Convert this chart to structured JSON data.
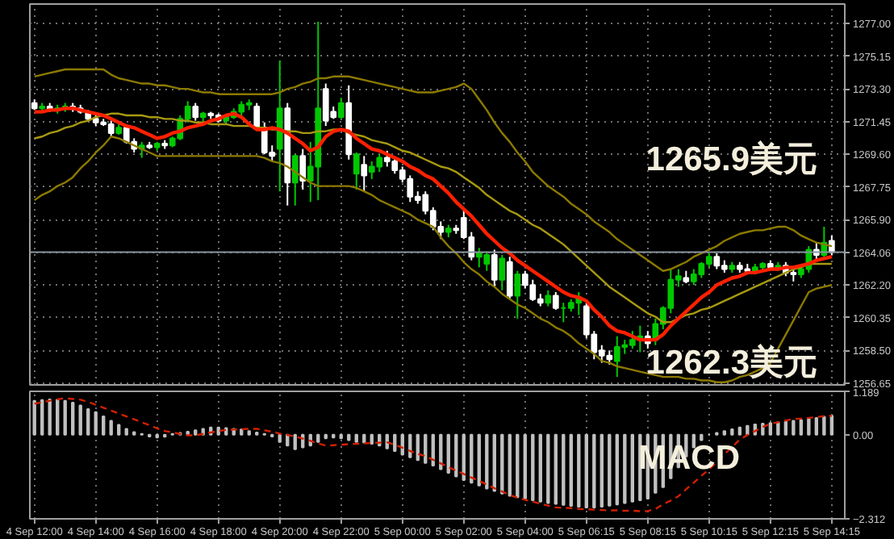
{
  "chart_data": [
    {
      "type": "candlestick",
      "ylim": [
        1256.55,
        1278.1
      ],
      "categories": [
        null,
        null,
        null,
        null,
        null,
        null,
        null,
        null,
        null,
        null,
        null,
        null,
        null,
        null,
        null,
        null,
        null,
        null,
        null,
        null,
        null,
        null,
        null,
        null,
        null,
        null,
        null,
        null,
        null,
        null,
        null,
        null,
        null,
        null,
        null,
        null,
        null,
        null,
        null,
        null,
        null,
        null,
        null,
        null,
        null,
        null,
        null,
        null,
        null,
        null,
        null,
        null,
        null,
        null,
        null,
        null,
        null,
        null,
        null,
        null,
        null,
        null,
        null,
        null,
        null,
        null,
        null,
        null,
        null,
        null,
        null,
        null,
        null,
        null,
        null,
        null,
        null,
        null,
        null,
        null,
        null,
        null,
        null,
        null,
        null,
        null,
        null,
        null,
        null,
        null,
        null,
        null,
        null,
        null,
        null,
        null,
        null,
        null,
        null,
        null,
        null,
        null,
        null,
        null,
        null
      ],
      "yticks": [
        {
          "value": 1277.0,
          "label": "1277.00"
        },
        {
          "value": 1275.15,
          "label": "1275.15"
        },
        {
          "value": 1273.3,
          "label": "1273.30"
        },
        {
          "value": 1271.45,
          "label": "1271.45"
        },
        {
          "value": 1269.6,
          "label": "1269.60"
        },
        {
          "value": 1267.75,
          "label": "1267.75"
        },
        {
          "value": 1265.9,
          "label": "1265.90"
        },
        {
          "value": 1264.06,
          "label": "1264.06"
        },
        {
          "value": 1262.2,
          "label": "1262.20"
        },
        {
          "value": 1260.35,
          "label": "1260.35"
        },
        {
          "value": 1258.5,
          "label": "1258.50"
        },
        {
          "value": 1256.65,
          "label": "1256.65"
        }
      ],
      "tick_labels": "y",
      "grid": true,
      "colors": [
        "#ffffff",
        "#00c800",
        "#ffffff",
        "#00c800",
        "#00c800",
        "#ffffff",
        "#ffffff",
        "#ffffff",
        "#ffffff",
        "#ffffff",
        "#ffffff",
        "#00c800",
        "#ffffff",
        "#ffffff",
        "#00c800",
        "#ffffff",
        "#00c800",
        "#ffffff",
        "#00c800",
        "#00c800",
        "#00c800",
        "#ffffff",
        "#00c800",
        "#ffffff",
        "#ffffff",
        "#00c800",
        "#00c800",
        "#00c800",
        "#00c800",
        "#ffffff",
        "#ffffff",
        "#ffffff",
        "#00c800",
        "#ffffff",
        "#00c800",
        "#ffffff",
        "#00c800",
        "#00c800",
        "#ffffff",
        "#ffffff",
        "#00c800",
        "#ffffff",
        "#00c800",
        "#ffffff",
        "#00c800",
        "#00c800",
        "#ffffff",
        "#ffffff",
        "#ffffff",
        "#ffffff",
        "#ffffff",
        "#ffffff",
        "#ffffff",
        "#ffffff",
        "#00c800",
        "#ffffff",
        "#ffffff",
        "#ffffff",
        "#00c800",
        "#00c800",
        "#ffffff",
        "#00c800",
        "#ffffff",
        "#00c800",
        "#ffffff",
        "#ffffff",
        "#ffffff",
        "#00c800",
        "#ffffff",
        "#00c800",
        "#00c800",
        "#00c800",
        "#ffffff",
        "#ffffff",
        "#ffffff",
        "#ffffff",
        "#00c800",
        "#00c800",
        "#00c800",
        "#00c800",
        "#ffffff",
        "#00c800",
        "#00c800",
        "#00c800",
        "#00c800",
        "#ffffff",
        "#00c800",
        "#00c800",
        "#00c800",
        "#ffffff",
        "#ffffff",
        "#00c800",
        "#ffffff",
        "#ffffff",
        "#00c800",
        "#00c800",
        "#ffffff",
        "#00c800",
        "#ffffff",
        "#ffffff",
        "#00c800",
        "#00c800",
        "#ffffff",
        "#00c800",
        "#ffffff"
      ],
      "ohlc": [
        [
          1272.5,
          1272.7,
          1272.1,
          1272.2
        ],
        [
          1272.2,
          1272.5,
          1272.0,
          1272.3
        ],
        [
          1272.3,
          1272.5,
          1272.0,
          1272.1
        ],
        [
          1272.1,
          1272.4,
          1271.9,
          1272.2
        ],
        [
          1272.2,
          1272.5,
          1272.0,
          1272.3
        ],
        [
          1272.3,
          1272.5,
          1272.0,
          1272.2
        ],
        [
          1272.2,
          1272.4,
          1271.9,
          1272.0
        ],
        [
          1272.0,
          1272.1,
          1271.5,
          1271.6
        ],
        [
          1271.6,
          1271.8,
          1271.2,
          1271.4
        ],
        [
          1271.4,
          1271.6,
          1271.2,
          1271.3
        ],
        [
          1271.3,
          1271.5,
          1270.6,
          1270.8
        ],
        [
          1270.8,
          1271.3,
          1270.7,
          1271.1
        ],
        [
          1271.1,
          1271.3,
          1270.2,
          1270.3
        ],
        [
          1270.3,
          1270.5,
          1269.7,
          1269.9
        ],
        [
          1269.9,
          1270.3,
          1269.4,
          1270.1
        ],
        [
          1270.1,
          1270.3,
          1269.9,
          1270.0
        ],
        [
          1270.0,
          1270.3,
          1269.8,
          1270.2
        ],
        [
          1270.2,
          1270.4,
          1269.9,
          1270.1
        ],
        [
          1270.1,
          1270.6,
          1270.0,
          1270.5
        ],
        [
          1270.5,
          1271.8,
          1270.4,
          1271.6
        ],
        [
          1271.6,
          1272.6,
          1271.4,
          1272.3
        ],
        [
          1272.3,
          1272.5,
          1271.5,
          1271.7
        ],
        [
          1271.7,
          1272.0,
          1271.4,
          1271.9
        ],
        [
          1271.9,
          1272.0,
          1271.6,
          1271.8
        ],
        [
          1271.8,
          1271.9,
          1271.4,
          1271.5
        ],
        [
          1271.5,
          1271.8,
          1271.3,
          1271.7
        ],
        [
          1271.7,
          1272.2,
          1271.6,
          1272.0
        ],
        [
          1272.0,
          1272.6,
          1271.8,
          1272.4
        ],
        [
          1272.4,
          1272.7,
          1272.1,
          1272.5
        ],
        [
          1272.3,
          1272.5,
          1271.0,
          1271.1
        ],
        [
          1271.1,
          1271.4,
          1269.6,
          1269.7
        ],
        [
          1269.7,
          1270.1,
          1269.2,
          1269.5
        ],
        [
          1269.9,
          1274.9,
          1267.5,
          1272.2
        ],
        [
          1272.2,
          1272.5,
          1266.7,
          1268.0
        ],
        [
          1268.0,
          1269.6,
          1266.7,
          1269.5
        ],
        [
          1269.5,
          1269.9,
          1267.6,
          1268.1
        ],
        [
          1268.1,
          1270.3,
          1266.9,
          1268.9
        ],
        [
          1268.9,
          1277.1,
          1267.0,
          1272.2
        ],
        [
          1273.3,
          1273.6,
          1271.2,
          1271.5
        ],
        [
          1272.0,
          1272.3,
          1271.6,
          1271.7
        ],
        [
          1271.7,
          1272.8,
          1271.6,
          1272.5
        ],
        [
          1272.5,
          1273.5,
          1269.3,
          1269.6
        ],
        [
          1268.5,
          1269.7,
          1267.6,
          1269.6
        ],
        [
          1269.0,
          1269.5,
          1267.5,
          1268.4
        ],
        [
          1268.6,
          1269.2,
          1268.2,
          1268.9
        ],
        [
          1268.9,
          1269.6,
          1268.6,
          1269.4
        ],
        [
          1269.4,
          1269.8,
          1268.9,
          1269.2
        ],
        [
          1269.2,
          1269.4,
          1268.5,
          1268.7
        ],
        [
          1268.7,
          1268.9,
          1268.0,
          1268.2
        ],
        [
          1268.2,
          1268.4,
          1266.9,
          1267.2
        ],
        [
          1267.2,
          1267.5,
          1266.8,
          1267.0
        ],
        [
          1267.3,
          1267.5,
          1266.2,
          1266.4
        ],
        [
          1266.4,
          1266.6,
          1265.3,
          1265.5
        ],
        [
          1265.5,
          1265.8,
          1264.8,
          1265.2
        ],
        [
          1265.2,
          1265.6,
          1264.9,
          1265.4
        ],
        [
          1265.4,
          1265.6,
          1265.1,
          1265.3
        ],
        [
          1266.0,
          1266.5,
          1264.8,
          1264.9
        ],
        [
          1264.9,
          1265.2,
          1263.6,
          1263.8
        ],
        [
          1263.8,
          1264.3,
          1263.2,
          1264.0
        ],
        [
          1263.4,
          1264.1,
          1263.0,
          1263.9
        ],
        [
          1263.9,
          1264.2,
          1262.1,
          1262.5
        ],
        [
          1262.5,
          1263.9,
          1261.9,
          1263.7
        ],
        [
          1263.5,
          1263.8,
          1261.4,
          1261.6
        ],
        [
          1261.6,
          1263.0,
          1260.3,
          1262.8
        ],
        [
          1262.8,
          1263.0,
          1262.0,
          1262.2
        ],
        [
          1262.2,
          1262.5,
          1261.3,
          1261.4
        ],
        [
          1261.4,
          1261.7,
          1261.0,
          1261.2
        ],
        [
          1261.2,
          1261.9,
          1261.0,
          1261.6
        ],
        [
          1261.6,
          1261.8,
          1260.8,
          1260.9
        ],
        [
          1260.9,
          1261.2,
          1260.1,
          1260.9
        ],
        [
          1260.9,
          1261.4,
          1260.7,
          1261.2
        ],
        [
          1261.2,
          1261.8,
          1260.5,
          1261.5
        ],
        [
          1261.0,
          1261.2,
          1259.2,
          1259.4
        ],
        [
          1259.4,
          1259.6,
          1258.0,
          1258.4
        ],
        [
          1258.5,
          1258.8,
          1257.8,
          1258.2
        ],
        [
          1258.2,
          1258.5,
          1257.7,
          1258.0
        ],
        [
          1257.9,
          1259.3,
          1257.0,
          1258.7
        ],
        [
          1258.7,
          1259.1,
          1258.3,
          1258.8
        ],
        [
          1258.8,
          1259.6,
          1258.6,
          1259.1
        ],
        [
          1259.1,
          1259.9,
          1258.4,
          1259.3
        ],
        [
          1259.3,
          1259.6,
          1258.6,
          1258.9
        ],
        [
          1259.1,
          1260.3,
          1258.8,
          1260.0
        ],
        [
          1260.0,
          1261.0,
          1259.7,
          1260.9
        ],
        [
          1260.9,
          1263.1,
          1260.6,
          1262.5
        ],
        [
          1262.5,
          1263.1,
          1262.1,
          1262.7
        ],
        [
          1262.6,
          1263.0,
          1262.3,
          1262.4
        ],
        [
          1262.4,
          1263.1,
          1262.2,
          1262.8
        ],
        [
          1262.8,
          1263.5,
          1262.6,
          1263.4
        ],
        [
          1263.4,
          1264.0,
          1263.2,
          1263.8
        ],
        [
          1263.8,
          1264.0,
          1263.1,
          1263.3
        ],
        [
          1263.3,
          1263.6,
          1262.9,
          1263.1
        ],
        [
          1263.1,
          1263.5,
          1262.9,
          1263.3
        ],
        [
          1263.3,
          1263.5,
          1262.9,
          1263.1
        ],
        [
          1263.1,
          1263.4,
          1262.8,
          1263.0
        ],
        [
          1263.0,
          1263.4,
          1262.8,
          1263.2
        ],
        [
          1263.2,
          1263.5,
          1263.0,
          1263.4
        ],
        [
          1263.4,
          1263.6,
          1263.1,
          1263.2
        ],
        [
          1263.2,
          1263.5,
          1263.0,
          1263.3
        ],
        [
          1263.3,
          1263.5,
          1262.7,
          1262.9
        ],
        [
          1262.9,
          1263.1,
          1262.4,
          1262.8
        ],
        [
          1262.8,
          1263.3,
          1262.6,
          1263.1
        ],
        [
          1263.1,
          1264.4,
          1262.9,
          1264.2
        ],
        [
          1264.2,
          1264.6,
          1263.6,
          1263.9
        ],
        [
          1263.9,
          1265.5,
          1263.7,
          1264.6
        ],
        [
          1264.7,
          1265.0,
          1263.9,
          1264.06
        ]
      ],
      "series": [
        {
          "type": "line",
          "color": "#8c7a00",
          "values": [
            1274.0,
            1274.1,
            1274.2,
            1274.3,
            1274.4,
            1274.4,
            1274.4,
            1274.4,
            1274.4,
            1274.4,
            1274.1,
            1273.9,
            1273.8,
            1273.7,
            1273.6,
            1273.6,
            1273.5,
            1273.5,
            1273.4,
            1273.3,
            1273.3,
            1273.2,
            1273.1,
            1273.1,
            1273.0,
            1273.0,
            1273.0,
            1273.0,
            1273.0,
            1273.0,
            1273.0,
            1273.0,
            1273.1,
            1273.3,
            1273.4,
            1273.6,
            1273.7,
            1273.9,
            1273.9,
            1274.0,
            1274.0,
            1274.0,
            1273.9,
            1273.8,
            1273.7,
            1273.6,
            1273.5,
            1273.4,
            1273.3,
            1273.2,
            1273.1,
            1273.1,
            1273.1,
            1273.2,
            1273.3,
            1273.4,
            1273.6,
            1273.3,
            1272.7,
            1272.1,
            1271.4,
            1270.8,
            1270.3,
            1269.7,
            1269.2,
            1268.6,
            1268.2,
            1267.8,
            1267.5,
            1267.2,
            1266.8,
            1266.5,
            1266.2,
            1265.8,
            1265.5,
            1265.2,
            1264.8,
            1264.5,
            1264.2,
            1263.9,
            1263.6,
            1263.3,
            1263.0,
            1263.1,
            1263.3,
            1263.5,
            1263.8,
            1264.0,
            1264.2,
            1264.4,
            1264.7,
            1264.9,
            1265.1,
            1265.2,
            1265.3,
            1265.3,
            1265.4,
            1265.5,
            1265.5,
            1265.3,
            1265.0,
            1264.8,
            1264.6,
            1264.5,
            1264.4
          ]
        },
        {
          "type": "line",
          "color": "#a89a10",
          "values": [
            1270.5,
            1270.6,
            1270.8,
            1270.9,
            1271.1,
            1271.2,
            1271.4,
            1271.5,
            1271.7,
            1271.8,
            1271.9,
            1271.9,
            1271.8,
            1271.8,
            1271.8,
            1271.7,
            1271.7,
            1271.6,
            1271.6,
            1271.5,
            1271.5,
            1271.4,
            1271.4,
            1271.3,
            1271.3,
            1271.3,
            1271.2,
            1271.2,
            1271.2,
            1271.1,
            1271.1,
            1271.0,
            1271.0,
            1270.9,
            1270.9,
            1270.8,
            1270.8,
            1270.9,
            1270.9,
            1271.0,
            1271.0,
            1270.8,
            1270.7,
            1270.6,
            1270.4,
            1270.3,
            1270.2,
            1270.0,
            1269.8,
            1269.7,
            1269.5,
            1269.3,
            1269.1,
            1268.9,
            1268.8,
            1268.6,
            1268.3,
            1268.0,
            1267.7,
            1267.3,
            1267.0,
            1266.7,
            1266.4,
            1266.2,
            1265.9,
            1265.6,
            1265.4,
            1265.1,
            1264.8,
            1264.5,
            1264.1,
            1263.7,
            1263.3,
            1262.9,
            1262.5,
            1262.1,
            1261.8,
            1261.5,
            1261.2,
            1260.9,
            1260.6,
            1260.4,
            1260.1,
            1260.1,
            1260.3,
            1260.5,
            1260.6,
            1260.8,
            1260.9,
            1261.1,
            1261.3,
            1261.5,
            1261.7,
            1261.9,
            1262.1,
            1262.3,
            1262.5,
            1262.7,
            1262.9,
            1263.1,
            1263.2,
            1263.4,
            1263.4,
            1263.4,
            1263.4
          ]
        },
        {
          "type": "line",
          "color": "#8c7a00",
          "values": [
            1267.0,
            1267.3,
            1267.5,
            1267.8,
            1268.0,
            1268.3,
            1268.8,
            1269.2,
            1269.7,
            1270.1,
            1270.6,
            1270.5,
            1270.3,
            1270.1,
            1269.9,
            1269.7,
            1269.5,
            1269.5,
            1269.5,
            1269.5,
            1269.5,
            1269.5,
            1269.5,
            1269.5,
            1269.5,
            1269.5,
            1269.5,
            1269.5,
            1269.5,
            1269.5,
            1269.4,
            1269.2,
            1269.1,
            1268.9,
            1268.6,
            1268.3,
            1268.0,
            1267.8,
            1267.8,
            1267.8,
            1267.8,
            1267.8,
            1267.7,
            1267.5,
            1267.3,
            1267.0,
            1266.8,
            1266.6,
            1266.4,
            1266.2,
            1265.9,
            1265.7,
            1265.5,
            1264.9,
            1264.4,
            1264.0,
            1263.5,
            1263.1,
            1262.8,
            1262.4,
            1262.1,
            1261.7,
            1261.4,
            1261.1,
            1260.9,
            1260.6,
            1260.3,
            1260.1,
            1259.8,
            1259.6,
            1259.3,
            1258.9,
            1258.6,
            1258.3,
            1257.9,
            1257.8,
            1257.6,
            1257.5,
            1257.4,
            1257.3,
            1257.2,
            1257.1,
            1257.0,
            1257.0,
            1257.0,
            1256.9,
            1256.9,
            1256.8,
            1256.8,
            1256.7,
            1256.7,
            1256.8,
            1257.0,
            1257.1,
            1257.3,
            1257.5,
            1257.8,
            1258.6,
            1259.4,
            1260.2,
            1261.0,
            1261.8,
            1262.0,
            1262.1,
            1262.2
          ]
        },
        {
          "type": "line",
          "color": "#ff2000",
          "values": [
            1272.0,
            1272.0,
            1272.1,
            1272.1,
            1272.2,
            1272.2,
            1272.1,
            1272.0,
            1271.9,
            1271.8,
            1271.6,
            1271.4,
            1271.2,
            1271.1,
            1270.9,
            1270.7,
            1270.5,
            1270.6,
            1270.8,
            1270.9,
            1271.1,
            1271.2,
            1271.3,
            1271.5,
            1271.6,
            1271.8,
            1271.9,
            1271.7,
            1271.3,
            1271.0,
            1271.0,
            1271.1,
            1271.0,
            1270.8,
            1270.5,
            1270.2,
            1269.8,
            1270.0,
            1270.6,
            1270.9,
            1271.0,
            1270.9,
            1270.5,
            1270.2,
            1269.9,
            1269.8,
            1269.6,
            1269.4,
            1269.2,
            1268.9,
            1268.7,
            1268.4,
            1268.2,
            1267.8,
            1267.4,
            1266.9,
            1266.5,
            1266.1,
            1265.6,
            1265.1,
            1264.7,
            1264.3,
            1264.0,
            1263.6,
            1263.3,
            1263.0,
            1262.7,
            1262.4,
            1262.1,
            1261.8,
            1261.6,
            1261.5,
            1261.3,
            1260.8,
            1260.4,
            1259.9,
            1259.6,
            1259.5,
            1259.3,
            1259.1,
            1259.1,
            1259.1,
            1259.4,
            1259.9,
            1260.3,
            1260.7,
            1261.1,
            1261.5,
            1261.8,
            1262.2,
            1262.4,
            1262.6,
            1262.7,
            1262.9,
            1262.9,
            1263.0,
            1263.1,
            1263.1,
            1263.2,
            1263.2,
            1263.3,
            1263.4,
            1263.6,
            1263.7,
            1263.8
          ]
        }
      ],
      "ref_lines": [
        {
          "axis": "y",
          "value": 1264.06,
          "color": "#8a96a0"
        }
      ],
      "annotations": [
        "1265.9美元",
        "1262.3美元"
      ]
    },
    {
      "type": "bar",
      "ylim": [
        -2.312,
        1.189
      ],
      "categories": [
        "4 Sep 12:00",
        null,
        null,
        null,
        null,
        null,
        null,
        null,
        "4 Sep 14:00",
        null,
        null,
        null,
        null,
        null,
        null,
        null,
        "4 Sep 16:00",
        null,
        null,
        null,
        null,
        null,
        null,
        null,
        "4 Sep 18:00",
        null,
        null,
        null,
        null,
        null,
        null,
        null,
        "4 Sep 20:00",
        null,
        null,
        null,
        null,
        null,
        null,
        null,
        "4 Sep 22:00",
        null,
        null,
        null,
        null,
        null,
        null,
        null,
        "5 Sep 00:00",
        null,
        null,
        null,
        null,
        null,
        null,
        null,
        "5 Sep 02:00",
        null,
        null,
        null,
        null,
        null,
        null,
        null,
        "5 Sep 04:00",
        null,
        null,
        null,
        null,
        null,
        null,
        null,
        "5 Sep 06:15",
        null,
        null,
        null,
        null,
        null,
        null,
        null,
        "5 Sep 08:15",
        null,
        null,
        null,
        null,
        null,
        null,
        null,
        "5 Sep 10:15",
        null,
        null,
        null,
        null,
        null,
        null,
        null,
        "5 Sep 12:15",
        null,
        null,
        null,
        null,
        null,
        null,
        null,
        "5 Sep 14:15"
      ],
      "yticks": [
        1.189,
        {
          "value": 0,
          "label": "0.00"
        },
        -2.312
      ],
      "grid": "x",
      "series": [
        {
          "type": "bar",
          "color": "#c0c0c0",
          "values": [
            0.93,
            0.95,
            0.97,
            0.96,
            0.93,
            0.88,
            0.8,
            0.7,
            0.62,
            0.5,
            0.38,
            0.27,
            0.16,
            0.07,
            0.02,
            -0.05,
            -0.08,
            -0.06,
            0.02,
            0.05,
            0.08,
            0.12,
            0.16,
            0.2,
            0.2,
            0.18,
            0.16,
            0.14,
            0.1,
            0.06,
            0.02,
            -0.05,
            -0.2,
            -0.3,
            -0.4,
            -0.35,
            -0.3,
            -0.2,
            -0.1,
            -0.08,
            -0.1,
            -0.15,
            -0.2,
            -0.22,
            -0.25,
            -0.3,
            -0.38,
            -0.45,
            -0.55,
            -0.62,
            -0.7,
            -0.78,
            -0.85,
            -0.95,
            -1.05,
            -1.15,
            -1.25,
            -1.32,
            -1.4,
            -1.48,
            -1.55,
            -1.62,
            -1.68,
            -1.72,
            -1.76,
            -1.8,
            -1.84,
            -1.88,
            -1.9,
            -1.93,
            -1.96,
            -1.98,
            -2.0,
            -2.0,
            -1.98,
            -1.95,
            -1.92,
            -1.88,
            -1.84,
            -1.8,
            -1.76,
            -1.6,
            -1.44,
            -1.2,
            -0.9,
            -0.6,
            -0.35,
            -0.15,
            0.0,
            0.05,
            0.1,
            0.15,
            0.2,
            0.24,
            0.28,
            0.3,
            0.32,
            0.34,
            0.36,
            0.38,
            0.4,
            0.43,
            0.46,
            0.49,
            0.52
          ]
        },
        {
          "type": "line",
          "color": "#d02000",
          "line_style": "dashed",
          "values": [
            0.85,
            0.89,
            0.93,
            0.97,
            1.0,
            0.98,
            0.96,
            0.9,
            0.82,
            0.74,
            0.66,
            0.58,
            0.5,
            0.42,
            0.34,
            0.26,
            0.17,
            0.1,
            0.06,
            0.02,
            -0.02,
            -0.02,
            0.02,
            0.06,
            0.1,
            0.13,
            0.14,
            0.15,
            0.16,
            0.16,
            0.12,
            0.08,
            0.03,
            -0.01,
            -0.05,
            -0.11,
            -0.17,
            -0.24,
            -0.3,
            -0.29,
            -0.28,
            -0.26,
            -0.25,
            -0.24,
            -0.23,
            -0.22,
            -0.21,
            -0.28,
            -0.36,
            -0.45,
            -0.53,
            -0.59,
            -0.69,
            -0.79,
            -0.89,
            -0.99,
            -1.08,
            -1.18,
            -1.27,
            -1.37,
            -1.47,
            -1.56,
            -1.66,
            -1.73,
            -1.79,
            -1.84,
            -1.9,
            -1.95,
            -2.0,
            -2.01,
            -2.02,
            -2.04,
            -2.05,
            -2.06,
            -2.07,
            -2.08,
            -2.08,
            -2.09,
            -2.09,
            -2.1,
            -2.1,
            -2.04,
            -1.91,
            -1.81,
            -1.69,
            -1.5,
            -1.32,
            -1.13,
            -0.95,
            -0.75,
            -0.54,
            -0.34,
            -0.14,
            -0.01,
            0.1,
            0.21,
            0.3,
            0.34,
            0.39,
            0.43,
            0.44,
            0.46,
            0.48,
            0.51,
            0.52
          ]
        }
      ],
      "annotations": [
        "MACD"
      ]
    }
  ]
}
